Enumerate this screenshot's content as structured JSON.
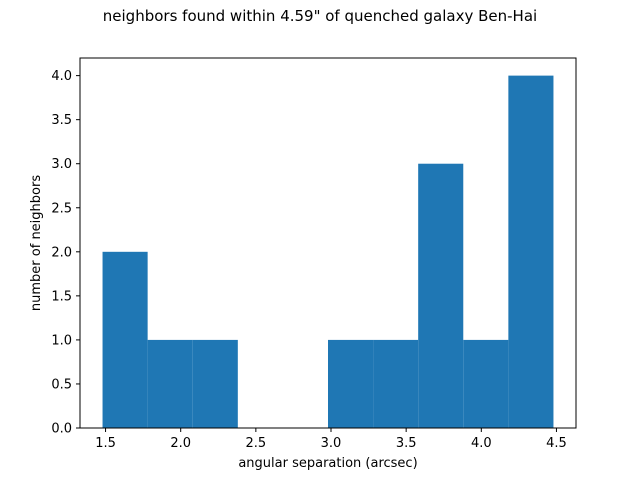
{
  "chart_data": {
    "type": "bar",
    "title": "neighbors found within 4.59\" of quenched galaxy Ben-Hai",
    "xlabel": "angular separation (arcsec)",
    "ylabel": "number of neighbors",
    "bin_edges": [
      1.48,
      1.78,
      2.08,
      2.38,
      2.68,
      2.98,
      3.28,
      3.58,
      3.88,
      4.18,
      4.48
    ],
    "values": [
      2,
      1,
      1,
      0,
      0,
      1,
      1,
      3,
      1,
      4
    ],
    "xlim": [
      1.33,
      4.63
    ],
    "ylim": [
      0,
      4.2
    ],
    "xticks": [
      1.5,
      2.0,
      2.5,
      3.0,
      3.5,
      4.0,
      4.5
    ],
    "xtick_labels": [
      "1.5",
      "2.0",
      "2.5",
      "3.0",
      "3.5",
      "4.0",
      "4.5"
    ],
    "yticks": [
      0,
      0.5,
      1.0,
      1.5,
      2.0,
      2.5,
      3.0,
      3.5,
      4.0
    ],
    "ytick_labels": [
      "0.0",
      "0.5",
      "1.0",
      "1.5",
      "2.0",
      "2.5",
      "3.0",
      "3.5",
      "4.0"
    ],
    "bar_color": "#1f77b4",
    "grid": false,
    "legend": "none"
  }
}
